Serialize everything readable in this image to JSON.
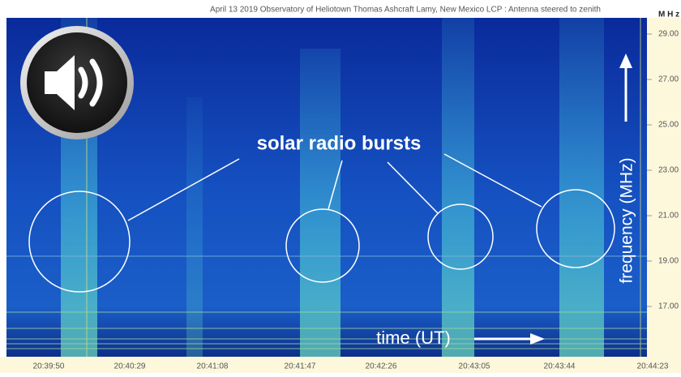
{
  "header": {
    "caption": "April 13 2019 Observatory of Heliotown  Thomas Ashcraft  Lamy, New Mexico  LCP  :  Antenna steered to zenith",
    "unit": "M H z"
  },
  "frequency_labels": [
    "29.00",
    "27.00",
    "25.00",
    "23.00",
    "21.00",
    "19.00",
    "17.00"
  ],
  "time_labels": [
    "20:39:50",
    "20:40:29",
    "20:41:08",
    "20:41:47",
    "20:42:26",
    "20:43:05",
    "20:43:44",
    "20:44:23"
  ],
  "annotations": {
    "bursts": "solar radio bursts",
    "frequency": "frequency (MHz)",
    "time": "time (UT)"
  }
}
